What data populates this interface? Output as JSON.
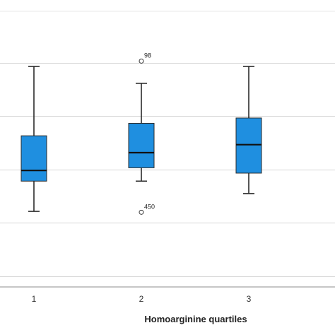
{
  "chart_data": {
    "type": "boxplot",
    "title": "",
    "xlabel": "Homoarginine quartiles",
    "ylabel": "",
    "categories": [
      "1",
      "2",
      "3"
    ],
    "boxes": [
      {
        "category": "1",
        "whisker_low": 0.65,
        "q1": 2.35,
        "median": 2.95,
        "q3": 4.9,
        "whisker_high": 8.8,
        "outliers": []
      },
      {
        "category": "2",
        "whisker_low": 2.35,
        "q1": 3.1,
        "median": 3.95,
        "q3": 5.6,
        "whisker_high": 7.85,
        "outliers": [
          {
            "value": 9.1,
            "label": "98"
          },
          {
            "value": 0.6,
            "label": "450"
          }
        ]
      },
      {
        "category": "3",
        "whisker_low": 1.65,
        "q1": 2.8,
        "median": 4.4,
        "q3": 5.9,
        "whisker_high": 8.8,
        "outliers": []
      }
    ],
    "ylim": [
      -3.6,
      11.9
    ],
    "gridlines": [
      -3,
      0,
      3,
      6,
      9
    ],
    "grid": true,
    "box_color": "#1f8fe0",
    "box_edge_color": "#2b2b2b"
  }
}
